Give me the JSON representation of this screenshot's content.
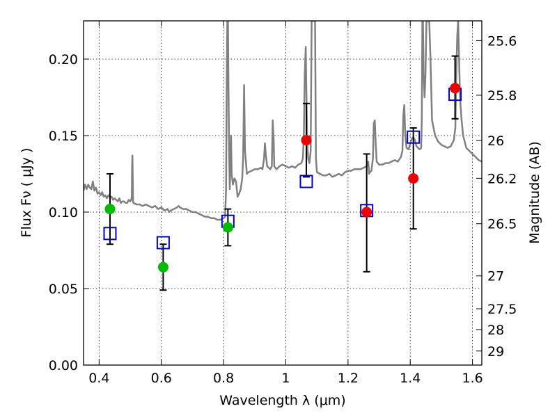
{
  "chart_data": {
    "type": "scatter",
    "xlabel": "Wavelength  λ (μm)",
    "ylabel": "Flux  Fν ( μJy )",
    "y2label": "Magnitude (AB)",
    "xlim": [
      0.35,
      1.63
    ],
    "ylim": [
      0.0,
      0.225
    ],
    "grid": true,
    "x_ticks": [
      0.4,
      0.6,
      0.8,
      1.0,
      1.2,
      1.4,
      1.6
    ],
    "x_tick_labels": [
      "0.4",
      "0.6",
      "0.8",
      "1",
      "1.2",
      "1.4",
      "1.6"
    ],
    "y_ticks": [
      0.0,
      0.05,
      0.1,
      0.15,
      0.2
    ],
    "y_tick_labels": [
      "0.00",
      "0.05",
      "0.10",
      "0.15",
      "0.20"
    ],
    "mag_ticks": [
      "25.6",
      "25.8",
      "26",
      "26.2",
      "26.5",
      "27",
      "27.5",
      "28",
      "29"
    ],
    "mag_tick_flux": [
      0.2121,
      0.1764,
      0.1468,
      0.1221,
      0.0924,
      0.0583,
      0.0368,
      0.0232,
      0.0092
    ],
    "colors": {
      "template": "#808080",
      "green": "#00bb00",
      "red": "#ee0000",
      "model_box": "#0000cc",
      "errorbar": "#000000"
    },
    "series": [
      {
        "kind": "observed_detected",
        "color": "green",
        "points": [
          {
            "x": 0.435,
            "y": 0.102,
            "err_lo": 0.079,
            "err_hi": 0.125
          },
          {
            "x": 0.606,
            "y": 0.064,
            "err_lo": 0.049,
            "err_hi": 0.079
          },
          {
            "x": 0.814,
            "y": 0.09,
            "err_lo": 0.078,
            "err_hi": 0.102
          }
        ]
      },
      {
        "kind": "observed_red",
        "color": "red",
        "points": [
          {
            "x": 1.066,
            "y": 0.147,
            "err_lo": 0.123,
            "err_hi": 0.171
          },
          {
            "x": 1.26,
            "y": 0.1,
            "err_lo": 0.061,
            "err_hi": 0.138
          },
          {
            "x": 1.41,
            "y": 0.122,
            "err_lo": 0.089,
            "err_hi": 0.155
          },
          {
            "x": 1.544,
            "y": 0.181,
            "err_lo": 0.161,
            "err_hi": 0.202
          }
        ]
      },
      {
        "kind": "model_photometry",
        "color": "model_box",
        "points": [
          {
            "x": 0.435,
            "y": 0.086
          },
          {
            "x": 0.606,
            "y": 0.08
          },
          {
            "x": 0.814,
            "y": 0.094
          },
          {
            "x": 1.066,
            "y": 0.12
          },
          {
            "x": 1.26,
            "y": 0.101
          },
          {
            "x": 1.41,
            "y": 0.149
          },
          {
            "x": 1.544,
            "y": 0.177
          }
        ]
      }
    ],
    "template_spectrum": [
      [
        0.35,
        0.114
      ],
      [
        0.355,
        0.118
      ],
      [
        0.36,
        0.115
      ],
      [
        0.365,
        0.118
      ],
      [
        0.37,
        0.116
      ],
      [
        0.375,
        0.115
      ],
      [
        0.38,
        0.12
      ],
      [
        0.385,
        0.114
      ],
      [
        0.39,
        0.116
      ],
      [
        0.395,
        0.112
      ],
      [
        0.4,
        0.113
      ],
      [
        0.405,
        0.111
      ],
      [
        0.41,
        0.113
      ],
      [
        0.415,
        0.11
      ],
      [
        0.42,
        0.111
      ],
      [
        0.425,
        0.109
      ],
      [
        0.43,
        0.111
      ],
      [
        0.435,
        0.11
      ],
      [
        0.44,
        0.11
      ],
      [
        0.445,
        0.108
      ],
      [
        0.45,
        0.109
      ],
      [
        0.455,
        0.108
      ],
      [
        0.46,
        0.107
      ],
      [
        0.465,
        0.109
      ],
      [
        0.47,
        0.106
      ],
      [
        0.475,
        0.107
      ],
      [
        0.48,
        0.107
      ],
      [
        0.485,
        0.106
      ],
      [
        0.49,
        0.106
      ],
      [
        0.495,
        0.108
      ],
      [
        0.5,
        0.107
      ],
      [
        0.503,
        0.108
      ],
      [
        0.505,
        0.11
      ],
      [
        0.506,
        0.13
      ],
      [
        0.507,
        0.137
      ],
      [
        0.508,
        0.124
      ],
      [
        0.509,
        0.107
      ],
      [
        0.51,
        0.106
      ],
      [
        0.52,
        0.105
      ],
      [
        0.53,
        0.105
      ],
      [
        0.54,
        0.104
      ],
      [
        0.55,
        0.105
      ],
      [
        0.56,
        0.104
      ],
      [
        0.57,
        0.103
      ],
      [
        0.58,
        0.104
      ],
      [
        0.59,
        0.102
      ],
      [
        0.6,
        0.103
      ],
      [
        0.61,
        0.101
      ],
      [
        0.62,
        0.102
      ],
      [
        0.625,
        0.1
      ],
      [
        0.63,
        0.101
      ],
      [
        0.64,
        0.102
      ],
      [
        0.65,
        0.103
      ],
      [
        0.656,
        0.104
      ],
      [
        0.66,
        0.103
      ],
      [
        0.67,
        0.102
      ],
      [
        0.68,
        0.102
      ],
      [
        0.69,
        0.101
      ],
      [
        0.7,
        0.1
      ],
      [
        0.71,
        0.1
      ],
      [
        0.72,
        0.099
      ],
      [
        0.73,
        0.098
      ],
      [
        0.74,
        0.097
      ],
      [
        0.75,
        0.097
      ],
      [
        0.76,
        0.096
      ],
      [
        0.77,
        0.096
      ],
      [
        0.78,
        0.095
      ],
      [
        0.79,
        0.095
      ],
      [
        0.8,
        0.096
      ],
      [
        0.805,
        0.097
      ],
      [
        0.808,
        0.115
      ],
      [
        0.81,
        0.18
      ],
      [
        0.812,
        0.225
      ],
      [
        0.814,
        0.225
      ],
      [
        0.816,
        0.18
      ],
      [
        0.818,
        0.14
      ],
      [
        0.82,
        0.115
      ],
      [
        0.822,
        0.13
      ],
      [
        0.824,
        0.15
      ],
      [
        0.826,
        0.125
      ],
      [
        0.83,
        0.118
      ],
      [
        0.835,
        0.122
      ],
      [
        0.84,
        0.12
      ],
      [
        0.845,
        0.11
      ],
      [
        0.85,
        0.112
      ],
      [
        0.855,
        0.115
      ],
      [
        0.86,
        0.122
      ],
      [
        0.863,
        0.135
      ],
      [
        0.866,
        0.183
      ],
      [
        0.869,
        0.14
      ],
      [
        0.875,
        0.125
      ],
      [
        0.88,
        0.126
      ],
      [
        0.89,
        0.127
      ],
      [
        0.9,
        0.128
      ],
      [
        0.91,
        0.128
      ],
      [
        0.92,
        0.129
      ],
      [
        0.925,
        0.128
      ],
      [
        0.93,
        0.135
      ],
      [
        0.933,
        0.145
      ],
      [
        0.936,
        0.137
      ],
      [
        0.94,
        0.13
      ],
      [
        0.95,
        0.128
      ],
      [
        0.955,
        0.13
      ],
      [
        0.958,
        0.16
      ],
      [
        0.961,
        0.148
      ],
      [
        0.963,
        0.13
      ],
      [
        0.97,
        0.128
      ],
      [
        0.98,
        0.13
      ],
      [
        0.99,
        0.131
      ],
      [
        1.0,
        0.13
      ],
      [
        1.01,
        0.129
      ],
      [
        1.02,
        0.13
      ],
      [
        1.03,
        0.129
      ],
      [
        1.04,
        0.131
      ],
      [
        1.05,
        0.132
      ],
      [
        1.055,
        0.135
      ],
      [
        1.058,
        0.15
      ],
      [
        1.061,
        0.19
      ],
      [
        1.064,
        0.208
      ],
      [
        1.066,
        0.18
      ],
      [
        1.069,
        0.145
      ],
      [
        1.072,
        0.135
      ],
      [
        1.076,
        0.132
      ],
      [
        1.08,
        0.14
      ],
      [
        1.083,
        0.225
      ],
      [
        1.087,
        0.225
      ],
      [
        1.09,
        0.225
      ],
      [
        1.094,
        0.225
      ],
      [
        1.097,
        0.135
      ],
      [
        1.1,
        0.126
      ],
      [
        1.11,
        0.125
      ],
      [
        1.12,
        0.124
      ],
      [
        1.13,
        0.124
      ],
      [
        1.14,
        0.125
      ],
      [
        1.15,
        0.123
      ],
      [
        1.16,
        0.124
      ],
      [
        1.17,
        0.125
      ],
      [
        1.18,
        0.124
      ],
      [
        1.19,
        0.126
      ],
      [
        1.2,
        0.127
      ],
      [
        1.21,
        0.127
      ],
      [
        1.22,
        0.128
      ],
      [
        1.23,
        0.128
      ],
      [
        1.24,
        0.128
      ],
      [
        1.25,
        0.129
      ],
      [
        1.26,
        0.13
      ],
      [
        1.265,
        0.133
      ],
      [
        1.268,
        0.125
      ],
      [
        1.27,
        0.126
      ],
      [
        1.275,
        0.127
      ],
      [
        1.28,
        0.135
      ],
      [
        1.283,
        0.158
      ],
      [
        1.286,
        0.16
      ],
      [
        1.289,
        0.145
      ],
      [
        1.292,
        0.133
      ],
      [
        1.3,
        0.131
      ],
      [
        1.31,
        0.131
      ],
      [
        1.32,
        0.132
      ],
      [
        1.33,
        0.132
      ],
      [
        1.34,
        0.133
      ],
      [
        1.35,
        0.134
      ],
      [
        1.36,
        0.133
      ],
      [
        1.37,
        0.136
      ],
      [
        1.375,
        0.14
      ],
      [
        1.378,
        0.164
      ],
      [
        1.381,
        0.17
      ],
      [
        1.384,
        0.15
      ],
      [
        1.388,
        0.142
      ],
      [
        1.395,
        0.141
      ],
      [
        1.4,
        0.145
      ],
      [
        1.405,
        0.148
      ],
      [
        1.41,
        0.149
      ],
      [
        1.415,
        0.147
      ],
      [
        1.42,
        0.143
      ],
      [
        1.43,
        0.141
      ],
      [
        1.435,
        0.142
      ],
      [
        1.437,
        0.16
      ],
      [
        1.439,
        0.225
      ],
      [
        1.441,
        0.225
      ],
      [
        1.443,
        0.19
      ],
      [
        1.446,
        0.175
      ],
      [
        1.449,
        0.19
      ],
      [
        1.452,
        0.225
      ],
      [
        1.455,
        0.225
      ],
      [
        1.458,
        0.225
      ],
      [
        1.461,
        0.225
      ],
      [
        1.465,
        0.2
      ],
      [
        1.47,
        0.16
      ],
      [
        1.48,
        0.15
      ],
      [
        1.49,
        0.146
      ],
      [
        1.5,
        0.144
      ],
      [
        1.51,
        0.143
      ],
      [
        1.52,
        0.142
      ],
      [
        1.53,
        0.143
      ],
      [
        1.54,
        0.147
      ],
      [
        1.545,
        0.155
      ],
      [
        1.548,
        0.19
      ],
      [
        1.551,
        0.215
      ],
      [
        1.554,
        0.225
      ],
      [
        1.557,
        0.2
      ],
      [
        1.56,
        0.175
      ],
      [
        1.565,
        0.16
      ],
      [
        1.57,
        0.15
      ],
      [
        1.58,
        0.142
      ],
      [
        1.59,
        0.14
      ],
      [
        1.6,
        0.138
      ],
      [
        1.61,
        0.136
      ],
      [
        1.62,
        0.134
      ],
      [
        1.63,
        0.133
      ]
    ]
  }
}
